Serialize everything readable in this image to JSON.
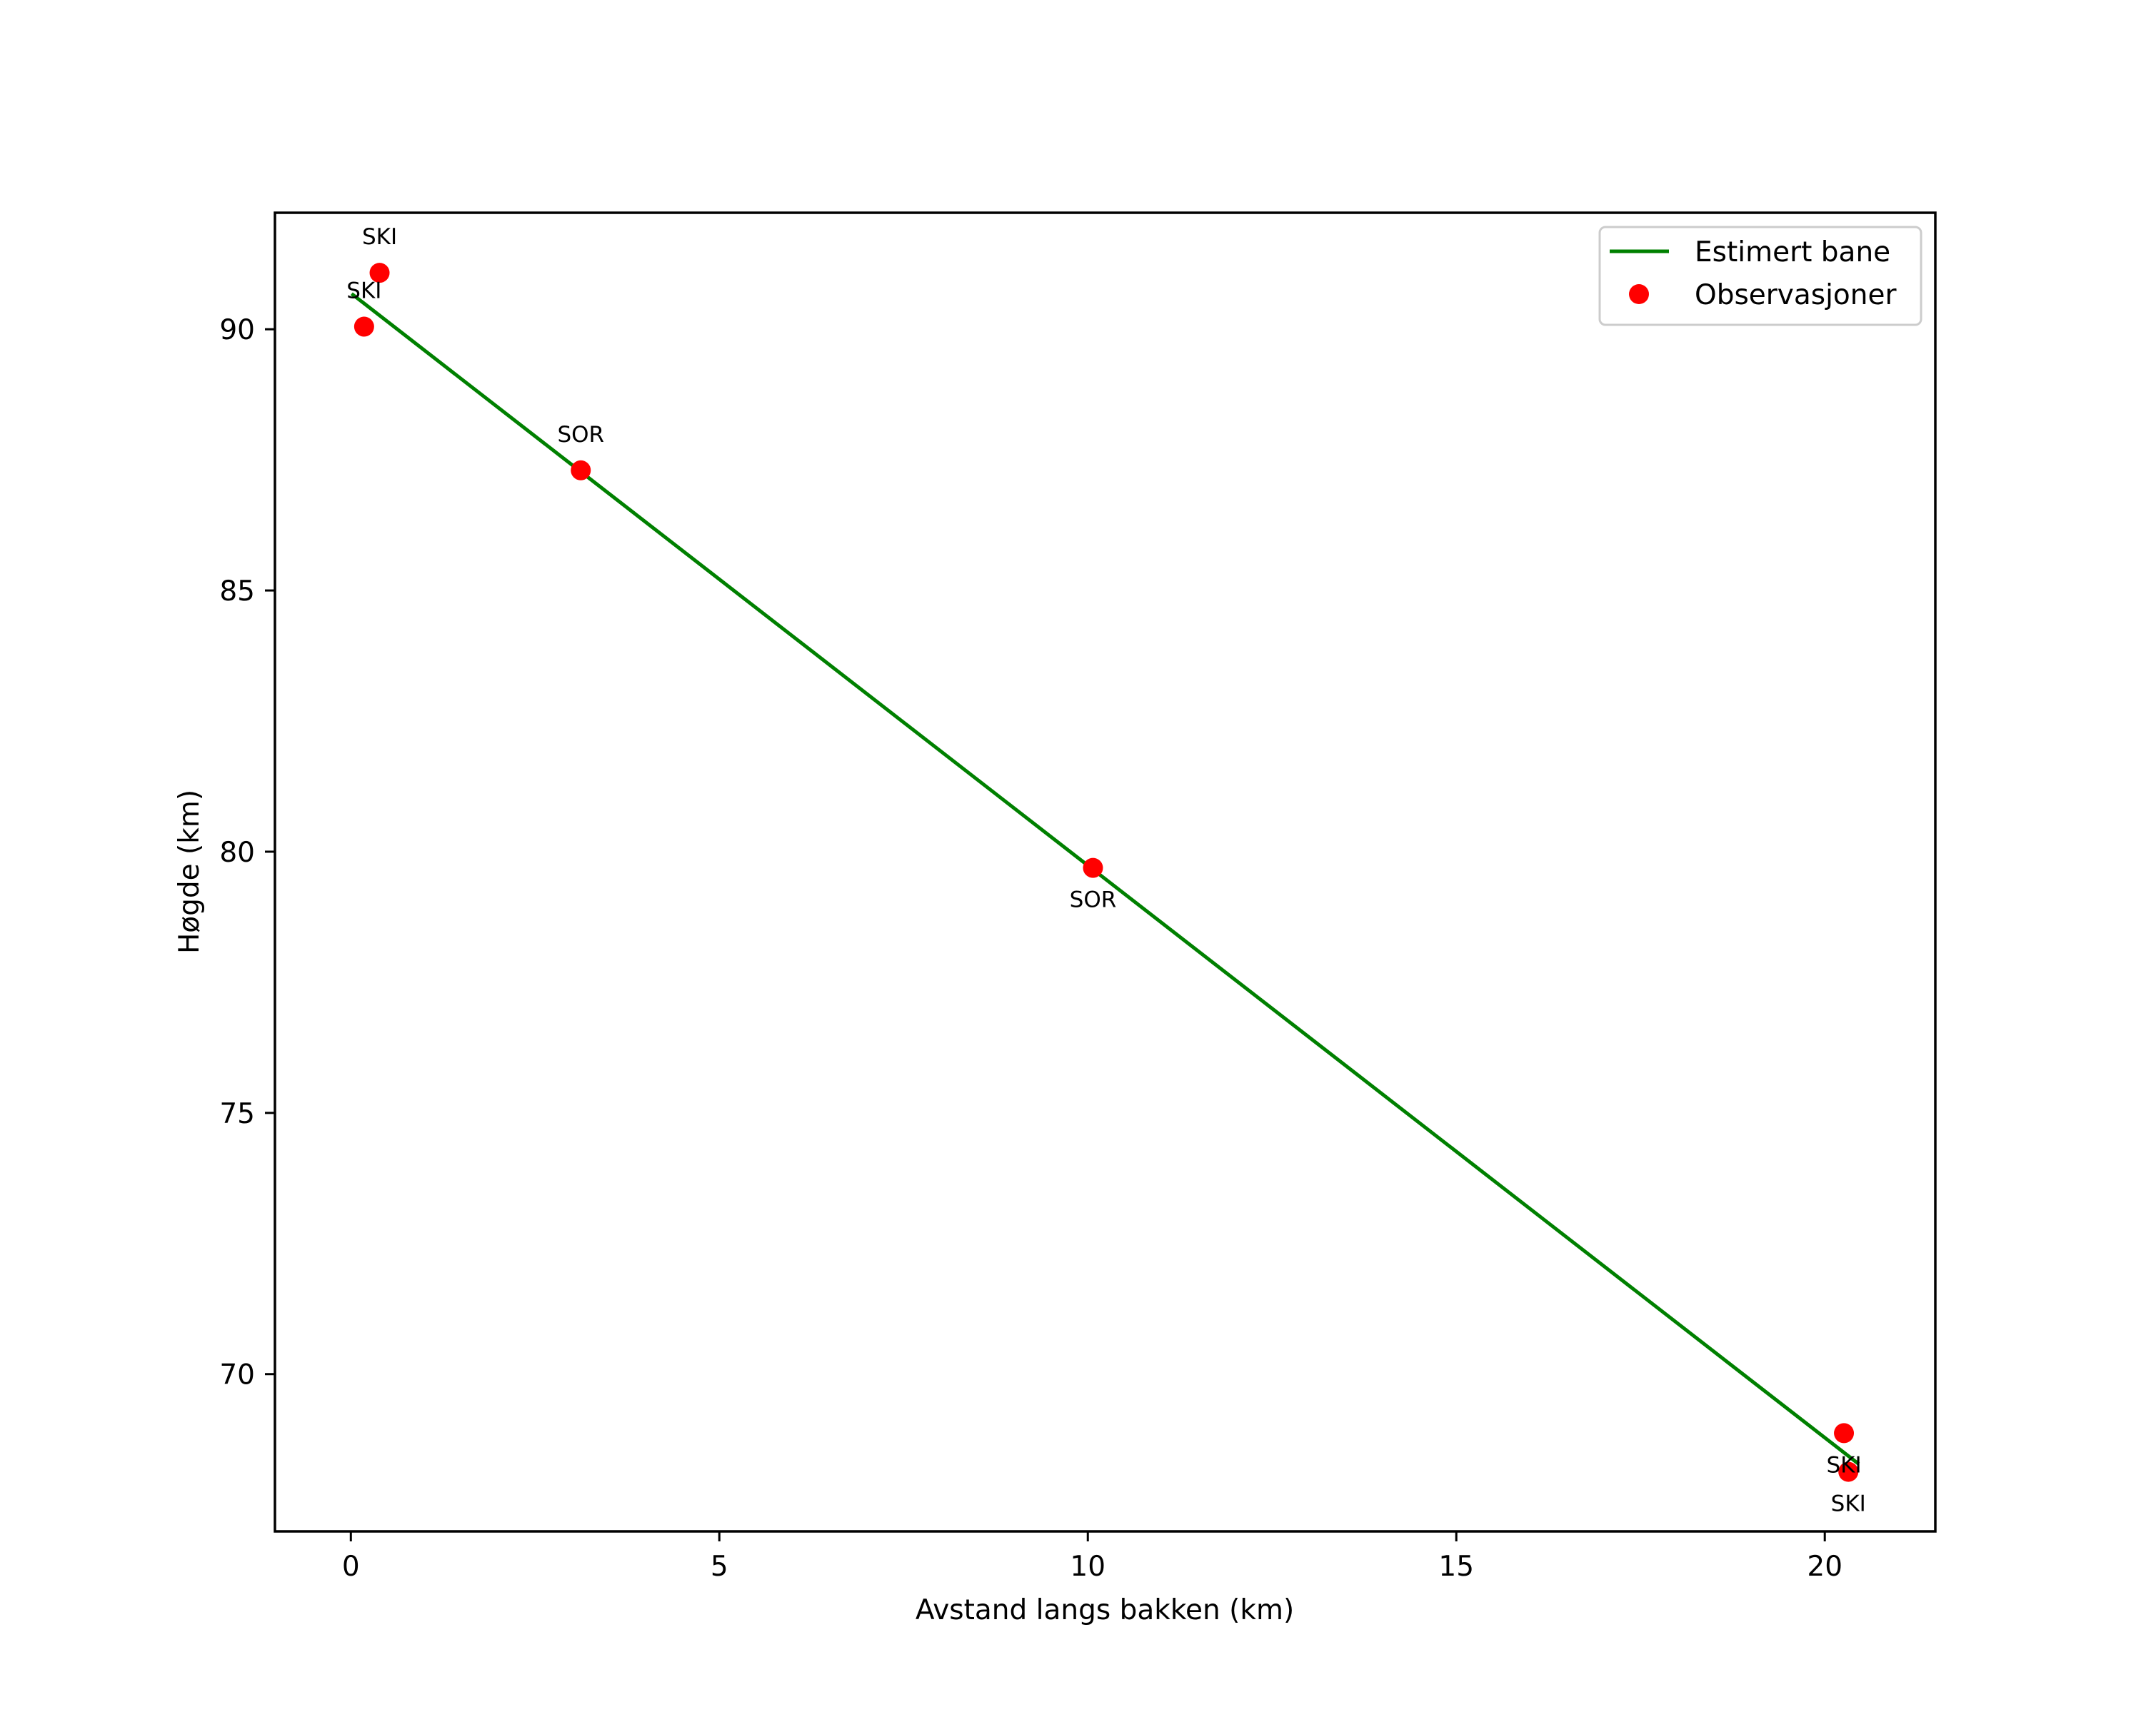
{
  "chart_data": {
    "type": "line",
    "title": "",
    "xlabel": "Avstand langs bakken (km)",
    "ylabel": "Høgde (km)",
    "xlim": [
      -1.03,
      21.5
    ],
    "ylim": [
      66.99,
      92.23
    ],
    "xticks": [
      0,
      5,
      10,
      15,
      20
    ],
    "yticks": [
      70,
      75,
      80,
      85,
      90
    ],
    "grid": false,
    "legend_position": "upper right",
    "legend": [
      {
        "label": "Estimert bane",
        "kind": "line",
        "color": "#008000"
      },
      {
        "label": "Observasjoner",
        "kind": "marker",
        "color": "#ff0000"
      }
    ],
    "series": [
      {
        "name": "Estimert bane",
        "type": "line",
        "color": "#008000",
        "x": [
          0.01,
          20.46
        ],
        "y": [
          90.68,
          68.28
        ]
      },
      {
        "name": "Observasjoner",
        "type": "scatter",
        "color": "#ff0000",
        "points": [
          {
            "x": 0.39,
            "y": 91.08,
            "label": "SKI",
            "label_pos": "above"
          },
          {
            "x": 0.18,
            "y": 90.05,
            "label": "SKI",
            "label_pos": "above"
          },
          {
            "x": 3.12,
            "y": 87.3,
            "label": "SOR",
            "label_pos": "above"
          },
          {
            "x": 10.07,
            "y": 79.69,
            "label": "SOR",
            "label_pos": "below"
          },
          {
            "x": 20.26,
            "y": 68.87,
            "label": "SKI",
            "label_pos": "below"
          },
          {
            "x": 20.32,
            "y": 68.13,
            "label": "SKI",
            "label_pos": "below"
          }
        ]
      }
    ]
  },
  "axes": {
    "xlabel": "Avstand langs bakken (km)",
    "ylabel": "Høgde (km)",
    "xtick_labels": [
      "0",
      "5",
      "10",
      "15",
      "20"
    ],
    "ytick_labels": [
      "70",
      "75",
      "80",
      "85",
      "90"
    ]
  },
  "legend": {
    "items": [
      {
        "label": "Estimert bane"
      },
      {
        "label": "Observasjoner"
      }
    ]
  }
}
